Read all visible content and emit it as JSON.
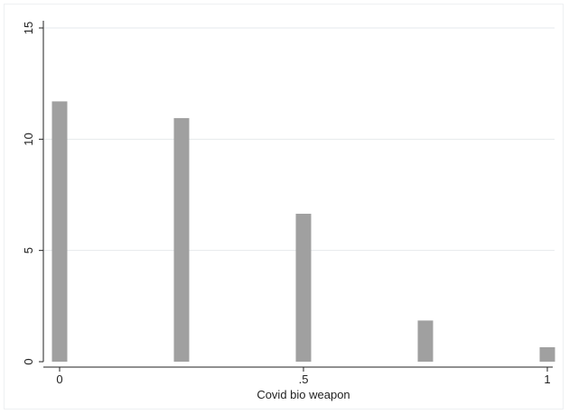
{
  "chart_data": {
    "type": "bar",
    "title": "",
    "xlabel": "Covid bio weapon",
    "ylabel": "",
    "x": [
      0,
      0.25,
      0.5,
      0.75,
      1
    ],
    "values": [
      11.7,
      10.95,
      6.65,
      1.85,
      0.65
    ],
    "xlim": [
      0,
      1
    ],
    "ylim": [
      0,
      15
    ],
    "x_ticks": [
      {
        "value": 0,
        "label": "0"
      },
      {
        "value": 0.5,
        "label": ".5"
      },
      {
        "value": 1,
        "label": "1"
      }
    ],
    "y_ticks": [
      {
        "value": 0,
        "label": "0"
      },
      {
        "value": 5,
        "label": "5"
      },
      {
        "value": 10,
        "label": "10"
      },
      {
        "value": 15,
        "label": "15"
      }
    ],
    "grid": true,
    "bar_color": "#a0a0a0",
    "grid_color": "#e6e9ec",
    "axis_color": "#222222"
  }
}
